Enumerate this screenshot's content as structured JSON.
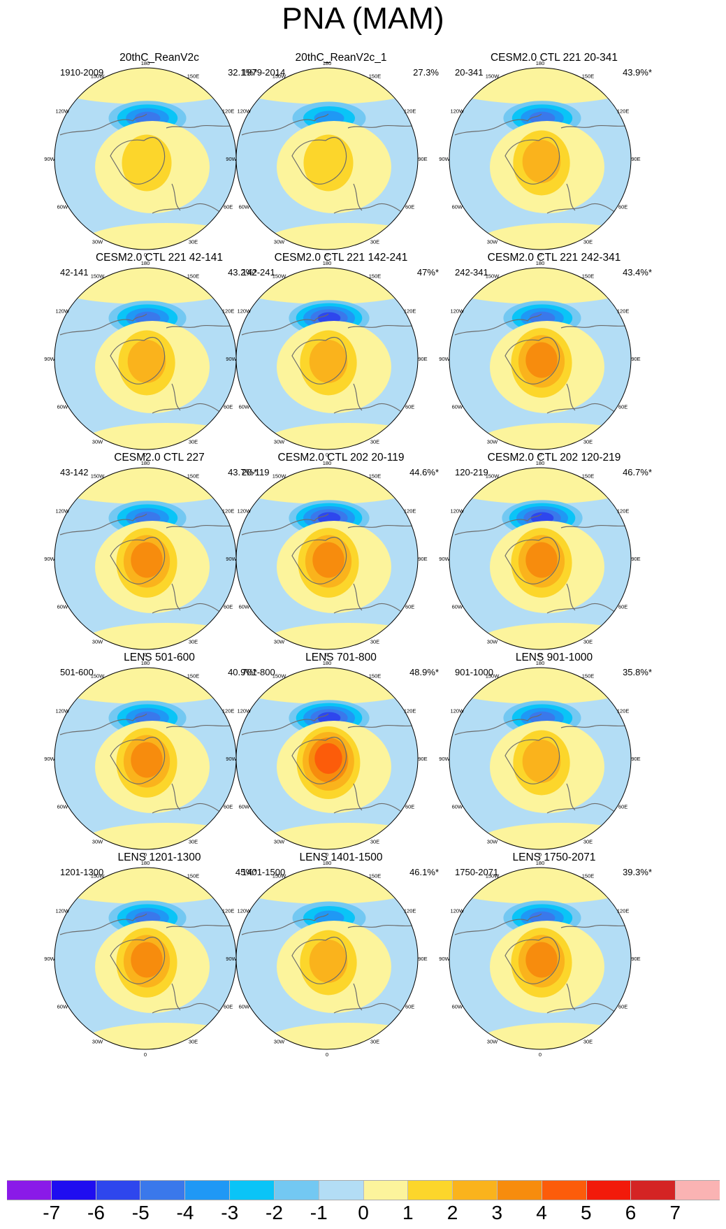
{
  "title": "PNA (MAM)",
  "lon_labels": [
    "180",
    "150E",
    "120E",
    "90E",
    "60E",
    "30E",
    "0",
    "30W",
    "60W",
    "90W",
    "120W",
    "150W"
  ],
  "panels": [
    {
      "title": "20thC_ReanV2c",
      "period": "1910-2009",
      "pct": "32.1%*",
      "low": -5,
      "high": 2
    },
    {
      "title": "20thC_ReanV2c_1",
      "period": "1979-2014",
      "pct": "27.3%",
      "low": -4,
      "high": 2
    },
    {
      "title": "CESM2.0 CTL 221 20-341",
      "period": "20-341",
      "pct": "43.9%*",
      "low": -5,
      "high": 3
    },
    {
      "title": "CESM2.0 CTL 221 42-141",
      "period": "42-141",
      "pct": "43.2%*",
      "low": -5,
      "high": 3
    },
    {
      "title": "CESM2.0 CTL 221 142-241",
      "period": "142-241",
      "pct": "47%*",
      "low": -6,
      "high": 3
    },
    {
      "title": "CESM2.0 CTL 221 242-341",
      "period": "242-341",
      "pct": "43.4%*",
      "low": -5,
      "high": 4
    },
    {
      "title": "CESM2.0 CTL 227",
      "period": "43-142",
      "pct": "43.7%*",
      "low": -5,
      "high": 4
    },
    {
      "title": "CESM2.0 CTL 202 20-119",
      "period": "20-119",
      "pct": "44.6%*",
      "low": -6,
      "high": 4
    },
    {
      "title": "CESM2.0 CTL 202 120-219",
      "period": "120-219",
      "pct": "46.7%*",
      "low": -6,
      "high": 4
    },
    {
      "title": "LENS 501-600",
      "period": "501-600",
      "pct": "40.9%*",
      "low": -5,
      "high": 4
    },
    {
      "title": "LENS 701-800",
      "period": "701-800",
      "pct": "48.9%*",
      "low": -6,
      "high": 5
    },
    {
      "title": "LENS 901-1000",
      "period": "901-1000",
      "pct": "35.8%*",
      "low": -5,
      "high": 3
    },
    {
      "title": "LENS 1201-1300",
      "period": "1201-1300",
      "pct": "45%*",
      "low": -5,
      "high": 4
    },
    {
      "title": "LENS 1401-1500",
      "period": "1401-1500",
      "pct": "46.1%*",
      "low": -4,
      "high": 3
    },
    {
      "title": "LENS 1750-2071",
      "period": "1750-2071",
      "pct": "39.3%*",
      "low": -5,
      "high": 4
    }
  ],
  "colorbar": {
    "colors": [
      "#8a1ae8",
      "#1f0df0",
      "#2e46ed",
      "#3a78eb",
      "#1f98f5",
      "#0ac4f7",
      "#73c8f2",
      "#b3ddf5",
      "#fcf49c",
      "#fcd62b",
      "#fab31c",
      "#f78c0d",
      "#fc5c0a",
      "#f21a0a",
      "#d42424",
      "#fab3b3"
    ],
    "labels": [
      "-7",
      "-6",
      "-5",
      "-4",
      "-3",
      "-2",
      "-1",
      "0",
      "1",
      "2",
      "3",
      "4",
      "5",
      "6",
      "7"
    ]
  }
}
